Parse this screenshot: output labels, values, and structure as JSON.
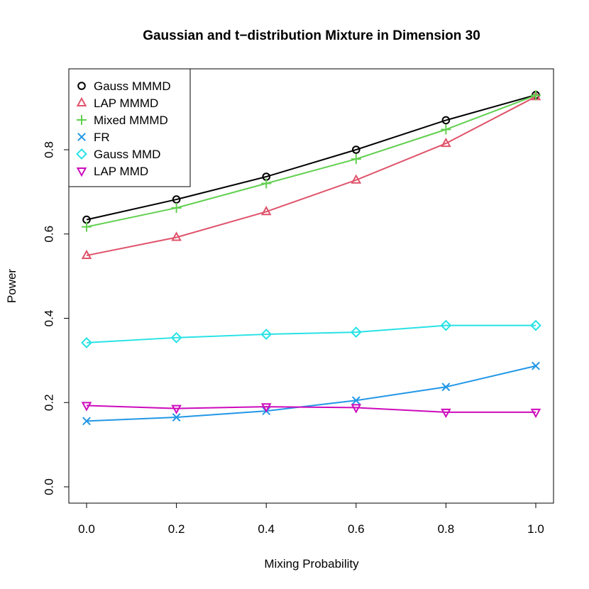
{
  "chart_data": {
    "type": "line",
    "title": "Gaussian and t−distribution Mixture in Dimension 30",
    "xlabel": "Mixing Probability",
    "ylabel": "Power",
    "x": [
      0.0,
      0.2,
      0.4,
      0.6,
      0.8,
      1.0
    ],
    "x_tick_labels": [
      "0.0",
      "0.2",
      "0.4",
      "0.6",
      "0.8",
      "1.0"
    ],
    "y_ticks": [
      0.0,
      0.2,
      0.4,
      0.6,
      0.8
    ],
    "y_tick_labels": [
      "0.0",
      "0.2",
      "0.4",
      "0.6",
      "0.8"
    ],
    "xlim": [
      -0.04,
      1.04
    ],
    "ylim": [
      -0.037,
      0.963
    ],
    "grid": false,
    "legend_position": "top-left",
    "series": [
      {
        "name": "Gauss MMMD",
        "color": "#000000",
        "marker": "circle",
        "values": [
          0.634,
          0.682,
          0.736,
          0.8,
          0.87,
          0.93
        ]
      },
      {
        "name": "LAP MMMD",
        "color": "#DF536B",
        "marker": "triangle-up",
        "values": [
          0.549,
          0.592,
          0.653,
          0.728,
          0.815,
          0.926
        ]
      },
      {
        "name": "Mixed MMMD",
        "color": "#61D04F",
        "marker": "plus",
        "values": [
          0.617,
          0.662,
          0.72,
          0.778,
          0.848,
          0.929
        ]
      },
      {
        "name": "FR",
        "color": "#2297E6",
        "marker": "cross",
        "values": [
          0.156,
          0.165,
          0.18,
          0.205,
          0.237,
          0.287
        ]
      },
      {
        "name": "Gauss MMD",
        "color": "#28E2E5",
        "marker": "diamond",
        "values": [
          0.342,
          0.354,
          0.362,
          0.367,
          0.383,
          0.383
        ]
      },
      {
        "name": "LAP MMD",
        "color": "#CD0BBC",
        "marker": "triangle-down",
        "values": [
          0.193,
          0.186,
          0.19,
          0.188,
          0.177,
          0.177
        ]
      }
    ]
  }
}
